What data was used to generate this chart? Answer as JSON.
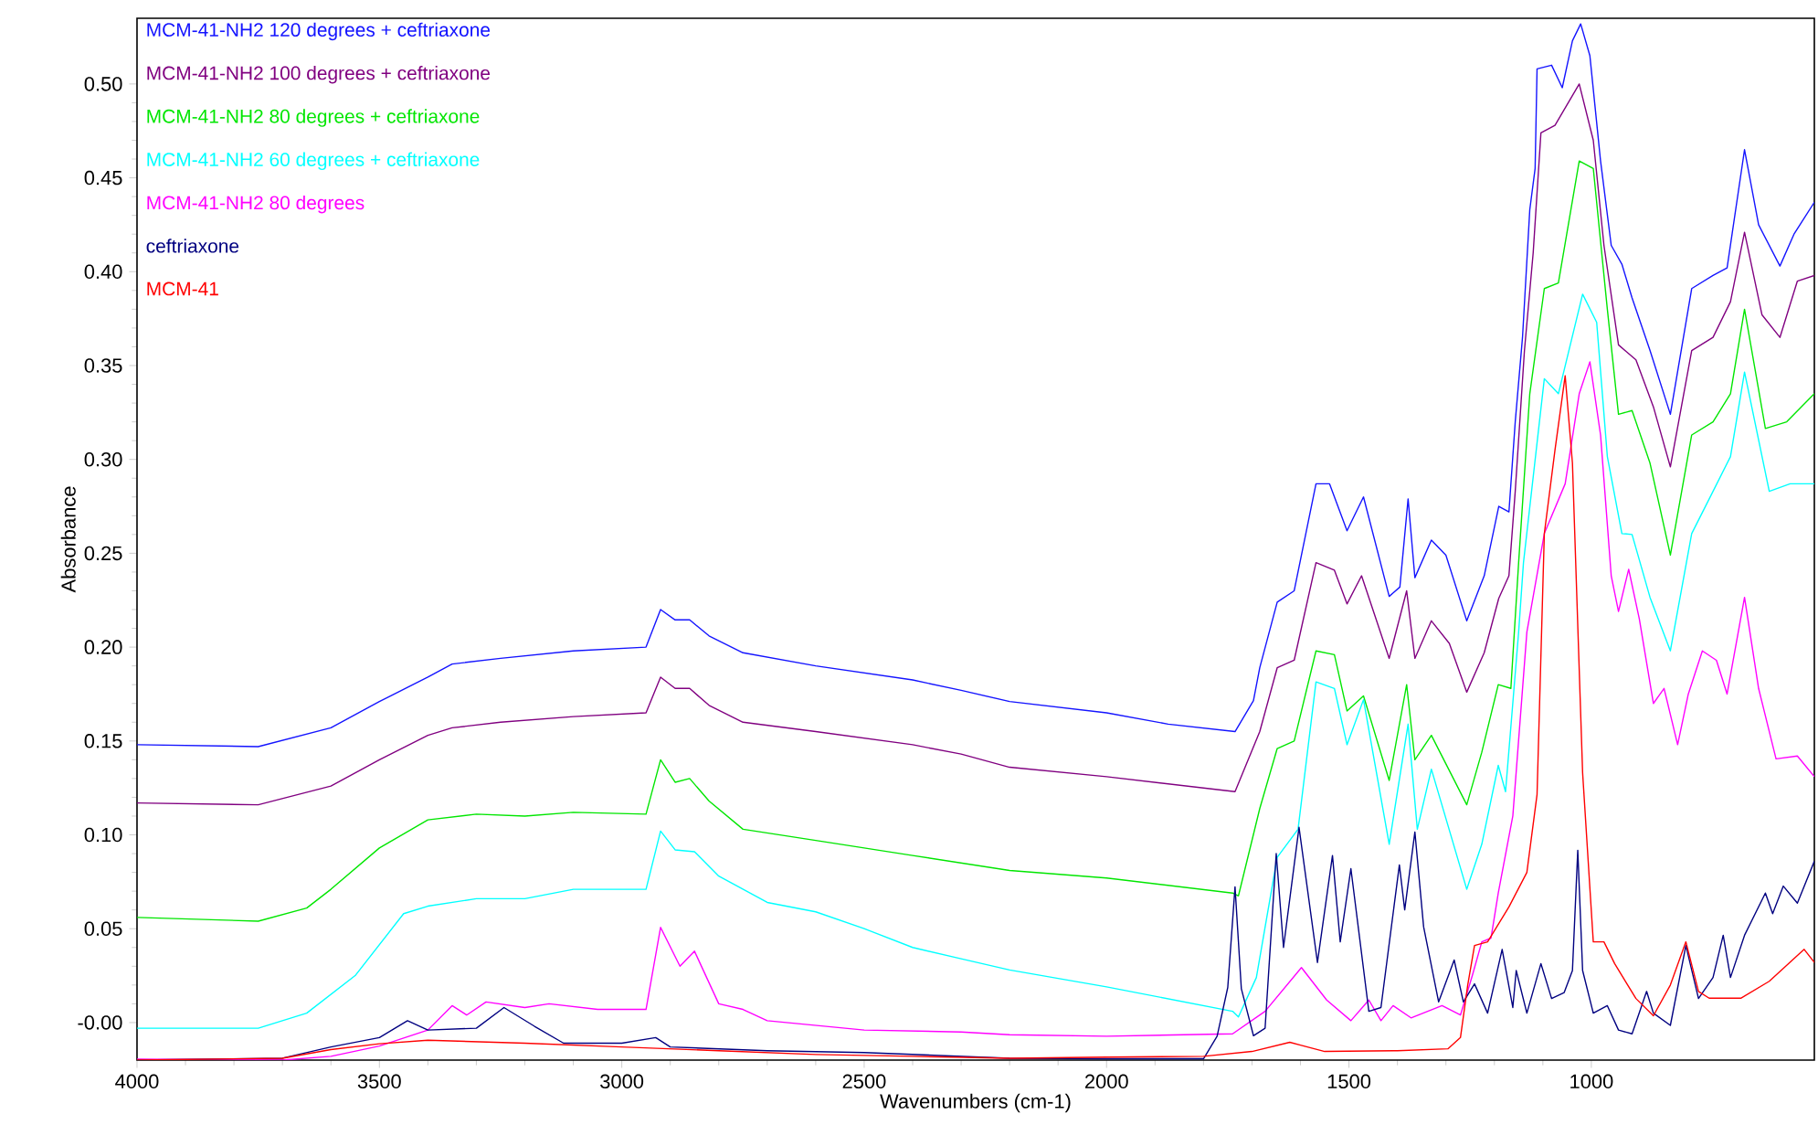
{
  "chart_data": {
    "type": "line",
    "xlabel": "Wavenumbers (cm-1)",
    "ylabel": "Absorbance",
    "xlim": [
      4000,
      540
    ],
    "ylim": [
      -0.02,
      0.535
    ],
    "xticks": [
      4000,
      3500,
      3000,
      2500,
      2000,
      1500,
      1000
    ],
    "yticks": [
      {
        "value": 0,
        "label": "-0.00"
      },
      {
        "value": 0.05,
        "label": "0.05"
      },
      {
        "value": 0.1,
        "label": "0.10"
      },
      {
        "value": 0.15,
        "label": "0.15"
      },
      {
        "value": 0.2,
        "label": "0.20"
      },
      {
        "value": 0.25,
        "label": "0.25"
      },
      {
        "value": 0.3,
        "label": "0.30"
      },
      {
        "value": 0.35,
        "label": "0.35"
      },
      {
        "value": 0.4,
        "label": "0.40"
      },
      {
        "value": 0.45,
        "label": "0.45"
      },
      {
        "value": 0.5,
        "label": "0.50"
      }
    ],
    "legend": "top left",
    "marker": "none",
    "series": [
      {
        "name": "MCM-41-NH2 120 degrees + ceftriaxone",
        "color": "#1414ff",
        "x": [
          4000,
          3750,
          3600,
          3500,
          3400,
          3350,
          3250,
          3100,
          2950,
          2920,
          2890,
          2860,
          2820,
          2750,
          2600,
          2400,
          2300,
          2200,
          2000,
          1873,
          1735,
          1697,
          1684,
          1648,
          1613,
          1568,
          1540,
          1504,
          1470,
          1417,
          1395,
          1378,
          1364,
          1330,
          1300,
          1257,
          1221,
          1191,
          1170,
          1157,
          1142,
          1127,
          1116,
          1112,
          1082,
          1060,
          1039,
          1022,
          1003,
          981,
          959,
          937,
          916,
          879,
          837,
          793,
          749,
          720,
          684,
          655,
          611,
          582,
          540
        ],
        "values": [
          0.148,
          0.147,
          0.157,
          0.171,
          0.184,
          0.191,
          0.194,
          0.198,
          0.2,
          0.22,
          0.2145,
          0.2145,
          0.206,
          0.197,
          0.19,
          0.1825,
          0.177,
          0.171,
          0.165,
          0.159,
          0.155,
          0.1715,
          0.189,
          0.224,
          0.23,
          0.287,
          0.287,
          0.262,
          0.28,
          0.227,
          0.232,
          0.279,
          0.237,
          0.257,
          0.249,
          0.214,
          0.238,
          0.275,
          0.272,
          0.32,
          0.365,
          0.433,
          0.455,
          0.508,
          0.51,
          0.498,
          0.523,
          0.532,
          0.515,
          0.459,
          0.414,
          0.404,
          0.386,
          0.358,
          0.324,
          0.391,
          0.398,
          0.402,
          0.465,
          0.425,
          0.403,
          0.42,
          0.437
        ]
      },
      {
        "name": "MCM-41-NH2 100 degrees + ceftriaxone",
        "color": "#800080",
        "x": [
          4000,
          3750,
          3600,
          3500,
          3400,
          3350,
          3250,
          3100,
          2950,
          2920,
          2890,
          2860,
          2820,
          2750,
          2600,
          2400,
          2300,
          2200,
          2000,
          1735,
          1684,
          1648,
          1613,
          1568,
          1530,
          1504,
          1474,
          1417,
          1381,
          1364,
          1330,
          1293,
          1257,
          1221,
          1191,
          1170,
          1157,
          1138,
          1120,
          1104,
          1075,
          1025,
          996,
          974,
          944,
          908,
          872,
          837,
          793,
          749,
          713,
          684,
          648,
          611,
          575,
          540
        ],
        "values": [
          0.117,
          0.116,
          0.126,
          0.14,
          0.153,
          0.157,
          0.16,
          0.163,
          0.165,
          0.184,
          0.178,
          0.178,
          0.169,
          0.16,
          0.155,
          0.148,
          0.143,
          0.136,
          0.131,
          0.123,
          0.155,
          0.189,
          0.193,
          0.245,
          0.241,
          0.223,
          0.238,
          0.194,
          0.23,
          0.194,
          0.214,
          0.202,
          0.176,
          0.197,
          0.226,
          0.238,
          0.283,
          0.358,
          0.41,
          0.474,
          0.478,
          0.5,
          0.47,
          0.414,
          0.361,
          0.353,
          0.328,
          0.296,
          0.358,
          0.365,
          0.384,
          0.421,
          0.377,
          0.365,
          0.395,
          0.398
        ]
      },
      {
        "name": "MCM-41-NH2 80 degrees + ceftriaxone",
        "color": "#00e600",
        "x": [
          4000,
          3750,
          3650,
          3600,
          3500,
          3400,
          3300,
          3200,
          3100,
          2950,
          2920,
          2890,
          2860,
          2820,
          2750,
          2600,
          2400,
          2200,
          2000,
          1740,
          1728,
          1684,
          1648,
          1613,
          1568,
          1530,
          1504,
          1470,
          1417,
          1381,
          1364,
          1330,
          1257,
          1226,
          1192,
          1166,
          1150,
          1127,
          1097,
          1068,
          1025,
          996,
          967,
          944,
          916,
          879,
          837,
          793,
          749,
          713,
          684,
          641,
          597,
          540
        ],
        "values": [
          0.056,
          0.054,
          0.061,
          0.071,
          0.093,
          0.108,
          0.111,
          0.11,
          0.112,
          0.111,
          0.14,
          0.128,
          0.13,
          0.118,
          0.103,
          0.097,
          0.089,
          0.081,
          0.077,
          0.069,
          0.0675,
          0.114,
          0.146,
          0.15,
          0.198,
          0.196,
          0.166,
          0.174,
          0.129,
          0.18,
          0.14,
          0.153,
          0.116,
          0.144,
          0.18,
          0.178,
          0.245,
          0.335,
          0.391,
          0.394,
          0.459,
          0.455,
          0.38,
          0.324,
          0.326,
          0.298,
          0.249,
          0.313,
          0.32,
          0.335,
          0.38,
          0.3165,
          0.32,
          0.335
        ]
      },
      {
        "name": "MCM-41-NH2 60 degrees + ceftriaxone",
        "color": "#00ffff",
        "x": [
          4000,
          3750,
          3650,
          3550,
          3450,
          3400,
          3300,
          3200,
          3100,
          2950,
          2920,
          2890,
          2850,
          2800,
          2700,
          2600,
          2500,
          2400,
          2300,
          2200,
          2000,
          1740,
          1728,
          1691,
          1648,
          1605,
          1568,
          1530,
          1504,
          1470,
          1417,
          1378,
          1359,
          1330,
          1257,
          1226,
          1192,
          1177,
          1150,
          1140,
          1097,
          1068,
          1018,
          989,
          967,
          937,
          916,
          879,
          837,
          793,
          749,
          713,
          684,
          633,
          590,
          540
        ],
        "values": [
          -0.003,
          -0.003,
          0.005,
          0.025,
          0.058,
          0.062,
          0.066,
          0.066,
          0.071,
          0.071,
          0.102,
          0.092,
          0.091,
          0.078,
          0.064,
          0.059,
          0.05,
          0.04,
          0.034,
          0.028,
          0.019,
          0.006,
          0.003,
          0.024,
          0.088,
          0.103,
          0.1815,
          0.178,
          0.148,
          0.172,
          0.095,
          0.159,
          0.103,
          0.135,
          0.071,
          0.095,
          0.137,
          0.123,
          0.208,
          0.245,
          0.343,
          0.335,
          0.388,
          0.373,
          0.3015,
          0.2605,
          0.26,
          0.2265,
          0.198,
          0.2605,
          0.283,
          0.3015,
          0.3465,
          0.283,
          0.287,
          0.287
        ]
      },
      {
        "name": "MCM-41-NH2 80 degrees",
        "color": "#ff00ff",
        "x": [
          4000,
          3700,
          3600,
          3500,
          3400,
          3350,
          3320,
          3280,
          3200,
          3150,
          3050,
          2950,
          2920,
          2880,
          2850,
          2800,
          2750,
          2700,
          2500,
          2300,
          2200,
          2000,
          1740,
          1673,
          1598,
          1546,
          1496,
          1459,
          1434,
          1409,
          1372,
          1308,
          1270,
          1245,
          1226,
          1207,
          1192,
          1162,
          1133,
          1097,
          1054,
          1025,
          1003,
          981,
          959,
          944,
          923,
          901,
          872,
          850,
          822,
          800,
          771,
          742,
          720,
          684,
          655,
          619,
          575,
          540
        ],
        "values": [
          -0.0195,
          -0.02,
          -0.018,
          -0.0125,
          -0.004,
          0.009,
          0.004,
          0.011,
          0.008,
          0.01,
          0.007,
          0.007,
          0.0507,
          0.03,
          0.038,
          0.01,
          0.007,
          0.001,
          -0.004,
          -0.005,
          -0.0065,
          -0.0073,
          -0.006,
          0.006,
          0.0293,
          0.012,
          0.001,
          0.012,
          0.001,
          0.009,
          0.0025,
          0.009,
          0.004,
          0.0255,
          0.043,
          0.045,
          0.069,
          0.11,
          0.208,
          0.2605,
          0.287,
          0.335,
          0.352,
          0.313,
          0.238,
          0.219,
          0.2415,
          0.215,
          0.17,
          0.178,
          0.148,
          0.175,
          0.198,
          0.193,
          0.175,
          0.2265,
          0.178,
          0.1405,
          0.142,
          0.131
        ]
      },
      {
        "name": "ceftriaxone",
        "color": "#000080",
        "x": [
          4000,
          3700,
          3600,
          3500,
          3442,
          3400,
          3300,
          3243,
          3180,
          3120,
          3000,
          2930,
          2900,
          2700,
          2500,
          2200,
          2000,
          1800,
          1772,
          1750,
          1735,
          1722,
          1697,
          1673,
          1650,
          1635,
          1603,
          1565,
          1534,
          1518,
          1496,
          1459,
          1434,
          1396,
          1385,
          1364,
          1346,
          1315,
          1283,
          1264,
          1241,
          1214,
          1184,
          1162,
          1155,
          1133,
          1104,
          1082,
          1056,
          1039,
          1028,
          1018,
          996,
          967,
          944,
          916,
          886,
          872,
          837,
          805,
          779,
          749,
          728,
          713,
          684,
          641,
          626,
          604,
          575,
          540
        ],
        "values": [
          -0.02,
          -0.019,
          -0.013,
          -0.008,
          0.001,
          -0.004,
          -0.003,
          0.008,
          -0.002,
          -0.011,
          -0.011,
          -0.008,
          -0.013,
          -0.015,
          -0.016,
          -0.019,
          -0.0193,
          -0.0193,
          -0.0073,
          0.0187,
          0.0723,
          0.018,
          -0.007,
          -0.003,
          0.09,
          0.04,
          0.104,
          0.032,
          0.089,
          0.043,
          0.082,
          0.006,
          0.008,
          0.084,
          0.06,
          0.1015,
          0.051,
          0.011,
          0.0333,
          0.011,
          0.0206,
          0.005,
          0.039,
          0.008,
          0.0277,
          0.005,
          0.0314,
          0.0128,
          0.016,
          0.0277,
          0.0918,
          0.0277,
          0.005,
          0.009,
          -0.004,
          -0.006,
          0.0166,
          0.005,
          -0.0015,
          0.041,
          0.0128,
          0.024,
          0.0465,
          0.024,
          0.0465,
          0.069,
          0.058,
          0.0727,
          0.0636,
          0.086
        ]
      },
      {
        "name": "MCM-41",
        "color": "#ff0000",
        "x": [
          4000,
          3700,
          3600,
          3500,
          3400,
          3200,
          3000,
          2800,
          2600,
          2400,
          2200,
          2000,
          1800,
          1700,
          1622,
          1600,
          1550,
          1400,
          1296,
          1270,
          1255,
          1241,
          1214,
          1170,
          1133,
          1112,
          1097,
          1075,
          1054,
          1039,
          1018,
          996,
          974,
          952,
          908,
          872,
          837,
          805,
          779,
          757,
          691,
          633,
          561,
          540
        ],
        "values": [
          -0.02,
          -0.019,
          -0.0144,
          -0.0113,
          -0.0094,
          -0.011,
          -0.013,
          -0.015,
          -0.017,
          -0.018,
          -0.019,
          -0.0184,
          -0.018,
          -0.0154,
          -0.0105,
          -0.012,
          -0.0154,
          -0.015,
          -0.014,
          -0.008,
          0.02,
          0.041,
          0.043,
          0.0616,
          0.08,
          0.1215,
          0.2605,
          0.305,
          0.3446,
          0.298,
          0.133,
          0.043,
          0.043,
          0.0314,
          0.0128,
          0.0036,
          0.02,
          0.043,
          0.0166,
          0.013,
          0.013,
          0.022,
          0.039,
          0.032
        ]
      }
    ]
  }
}
